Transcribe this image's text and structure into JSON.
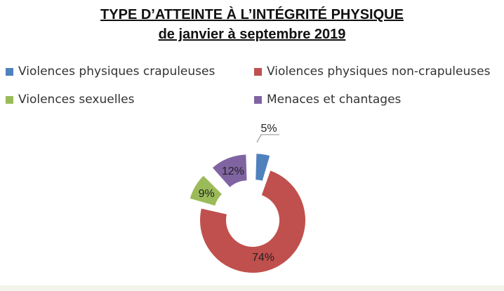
{
  "chart_data": {
    "type": "pie",
    "variant": "donut-exploded",
    "title": "TYPE D’ATTEINTE À L’INTÉGRITÉ PHYSIQUE",
    "subtitle": "de janvier à septembre 2019",
    "legend_position": "top",
    "categories": [
      "Violences physiques crapuleuses",
      "Violences physiques non-crapuleuses",
      "Violences sexuelles",
      "Menaces et chantages"
    ],
    "values": [
      5,
      74,
      9,
      12
    ],
    "labels": [
      "5%",
      "74%",
      "9%",
      "12%"
    ],
    "colors": [
      "#4f81bd",
      "#c0504d",
      "#9bbb59",
      "#8064a2"
    ],
    "exploded": [
      true,
      false,
      true,
      true
    ]
  }
}
